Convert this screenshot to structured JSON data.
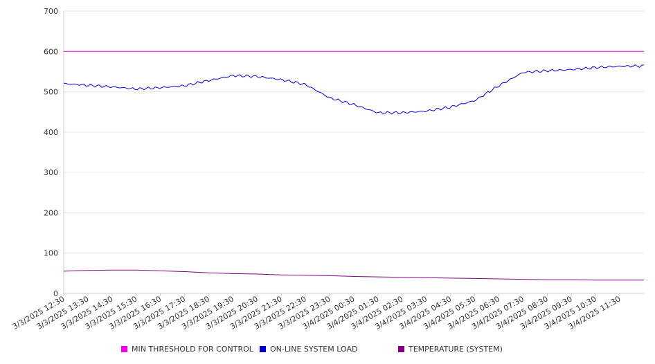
{
  "chart_data": {
    "type": "line",
    "title": "",
    "xlabel": "",
    "ylabel": "",
    "ylim": [
      0,
      700
    ],
    "yticks": [
      "0",
      "100",
      "200",
      "300",
      "400",
      "500",
      "600",
      "700"
    ],
    "grid": true,
    "legend_position": "bottom",
    "x_tick_labels": [
      "3/3/2025 12:30",
      "3/3/2025 13:30",
      "3/3/2025 14:30",
      "3/3/2025 15:30",
      "3/3/2025 16:30",
      "3/3/2025 17:30",
      "3/3/2025 18:30",
      "3/3/2025 19:30",
      "3/3/2025 20:30",
      "3/3/2025 21:30",
      "3/3/2025 22:30",
      "3/3/2025 23:30",
      "3/4/2025 00:30",
      "3/4/2025 01:30",
      "3/4/2025 02:30",
      "3/4/2025 03:30",
      "3/4/2025 04:30",
      "3/4/2025 05:30",
      "3/4/2025 06:30",
      "3/4/2025 07:30",
      "3/4/2025 08:30",
      "3/4/2025 09:30",
      "3/4/2025 10:30",
      "3/4/2025 11:30"
    ],
    "x": [
      "3/3/2025 12:30",
      "3/3/2025 13:30",
      "3/3/2025 14:30",
      "3/3/2025 15:30",
      "3/3/2025 16:30",
      "3/3/2025 17:30",
      "3/3/2025 18:30",
      "3/3/2025 19:30",
      "3/3/2025 20:30",
      "3/3/2025 21:30",
      "3/3/2025 22:30",
      "3/3/2025 23:30",
      "3/4/2025 00:30",
      "3/4/2025 01:30",
      "3/4/2025 02:30",
      "3/4/2025 03:30",
      "3/4/2025 04:30",
      "3/4/2025 05:30",
      "3/4/2025 06:30",
      "3/4/2025 07:30",
      "3/4/2025 08:30",
      "3/4/2025 09:30",
      "3/4/2025 10:30",
      "3/4/2025 11:30",
      "3/4/2025 12:30"
    ],
    "series": [
      {
        "name": "MIN THRESHOLD FOR CONTROL",
        "color": "#ee00ee",
        "values": [
          600,
          600,
          600,
          600,
          600,
          600,
          600,
          600,
          600,
          600,
          600,
          600,
          600,
          600,
          600,
          600,
          600,
          600,
          600,
          600,
          600,
          600,
          600,
          600,
          600
        ]
      },
      {
        "name": "ON-LINE SYSTEM LOAD",
        "color": "#0000cc",
        "values": [
          520,
          516,
          512,
          507,
          510,
          515,
          528,
          540,
          538,
          530,
          518,
          485,
          468,
          448,
          448,
          452,
          462,
          478,
          515,
          548,
          552,
          555,
          560,
          563,
          564
        ]
      },
      {
        "name": "TEMPERATURE (SYSTEM)",
        "color": "#800080",
        "values": [
          55,
          57,
          58,
          58,
          56,
          54,
          51,
          49,
          48,
          46,
          45,
          44,
          42,
          41,
          40,
          39,
          38,
          37,
          36,
          35,
          34,
          34,
          33,
          33,
          33
        ]
      }
    ]
  }
}
